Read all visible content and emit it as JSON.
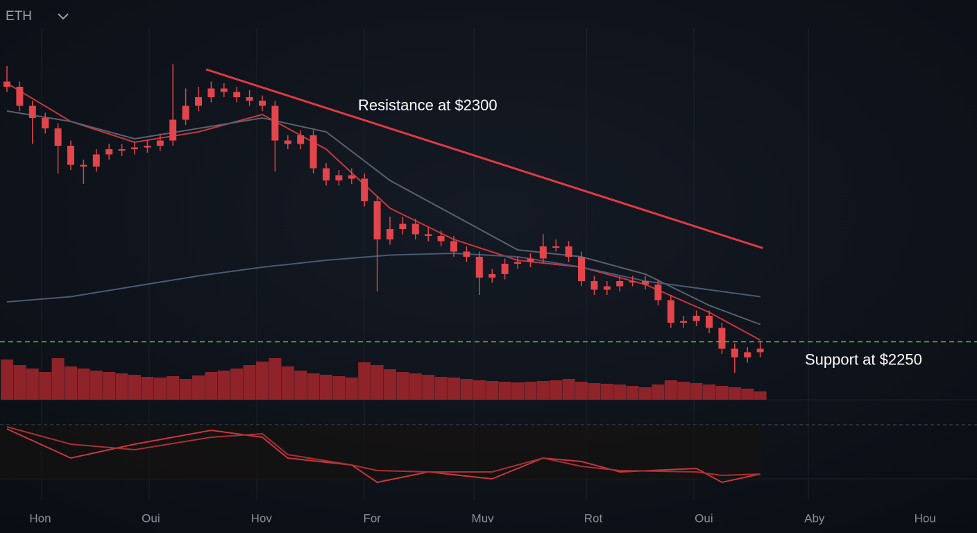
{
  "header": {
    "symbol": "ETH"
  },
  "chart_data": {
    "type": "candlestick",
    "ylim": [
      2220,
      2420
    ],
    "color": "#e2454b",
    "open": [
      2400,
      2397,
      2386,
      2379,
      2373,
      2363,
      2352,
      2351,
      2358,
      2361,
      2361,
      2362,
      2363,
      2366,
      2378,
      2386,
      2391,
      2396,
      2394,
      2391,
      2389,
      2386,
      2366,
      2364,
      2369,
      2350,
      2343,
      2346,
      2344,
      2331,
      2309,
      2315,
      2318,
      2312,
      2311,
      2308,
      2302,
      2299,
      2287,
      2289,
      2295,
      2296,
      2298,
      2305,
      2305,
      2299,
      2285,
      2280,
      2282,
      2285,
      2285,
      2283,
      2274,
      2261,
      2262,
      2265,
      2258,
      2246,
      2241,
      2244
    ],
    "high": [
      2409,
      2400,
      2389,
      2382,
      2376,
      2366,
      2355,
      2361,
      2364,
      2364,
      2365,
      2366,
      2370,
      2410,
      2396,
      2397,
      2400,
      2399,
      2397,
      2395,
      2392,
      2389,
      2369,
      2372,
      2372,
      2353,
      2349,
      2350,
      2347,
      2334,
      2322,
      2322,
      2321,
      2316,
      2314,
      2311,
      2305,
      2302,
      2292,
      2298,
      2299,
      2301,
      2312,
      2309,
      2308,
      2302,
      2288,
      2285,
      2288,
      2288,
      2288,
      2286,
      2277,
      2265,
      2268,
      2268,
      2261,
      2249,
      2247,
      2250
    ],
    "low": [
      2394,
      2383,
      2364,
      2370,
      2347,
      2349,
      2341,
      2348,
      2355,
      2357,
      2358,
      2359,
      2360,
      2363,
      2375,
      2383,
      2388,
      2391,
      2388,
      2386,
      2383,
      2348,
      2361,
      2361,
      2347,
      2340,
      2340,
      2341,
      2328,
      2279,
      2306,
      2312,
      2309,
      2308,
      2305,
      2299,
      2296,
      2277,
      2284,
      2286,
      2292,
      2293,
      2295,
      2302,
      2296,
      2282,
      2277,
      2277,
      2279,
      2282,
      2280,
      2271,
      2258,
      2258,
      2259,
      2255,
      2243,
      2232,
      2238,
      2241
    ],
    "close": [
      2397,
      2386,
      2379,
      2373,
      2363,
      2352,
      2351,
      2358,
      2361,
      2361,
      2362,
      2363,
      2366,
      2378,
      2386,
      2391,
      2396,
      2394,
      2391,
      2389,
      2386,
      2366,
      2364,
      2369,
      2350,
      2343,
      2346,
      2344,
      2331,
      2309,
      2315,
      2318,
      2312,
      2311,
      2308,
      2302,
      2299,
      2287,
      2289,
      2295,
      2296,
      2298,
      2305,
      2305,
      2299,
      2285,
      2280,
      2282,
      2285,
      2285,
      2283,
      2274,
      2261,
      2262,
      2265,
      2258,
      2246,
      2241,
      2244,
      2246
    ],
    "volume": [
      58,
      50,
      45,
      40,
      60,
      48,
      45,
      42,
      40,
      38,
      36,
      33,
      32,
      34,
      30,
      35,
      40,
      42,
      45,
      50,
      55,
      60,
      48,
      42,
      38,
      36,
      34,
      32,
      54,
      50,
      44,
      40,
      38,
      36,
      33,
      32,
      30,
      28,
      27,
      26,
      25,
      26,
      27,
      28,
      30,
      26,
      24,
      23,
      22,
      20,
      18,
      22,
      28,
      26,
      24,
      22,
      20,
      18,
      16,
      12
    ],
    "volume_color": "#8e2329",
    "moving_averages": [
      {
        "color": "#c8363d",
        "x": [
          0,
          5,
          10,
          15,
          20,
          25,
          30,
          35,
          40,
          45,
          50,
          55,
          59
        ],
        "values": [
          2399,
          2377,
          2365,
          2371,
          2381,
          2361,
          2327,
          2309,
          2297,
          2293,
          2283,
          2267,
          2251
        ]
      },
      {
        "color": "#59626f",
        "x": [
          0,
          5,
          10,
          15,
          20,
          25,
          30,
          35,
          40,
          45,
          50,
          55,
          59
        ],
        "values": [
          2383,
          2377,
          2367,
          2373,
          2379,
          2371,
          2343,
          2323,
          2303,
          2299,
          2289,
          2271,
          2260
        ]
      },
      {
        "color": "#4a5a74",
        "x": [
          0,
          5,
          10,
          15,
          20,
          25,
          30,
          35,
          40,
          45,
          50,
          55,
          59
        ],
        "values": [
          2273,
          2276,
          2282,
          2288,
          2293,
          2297,
          2300,
          2301,
          2299,
          2293,
          2285,
          2280,
          2276
        ]
      }
    ],
    "resistance": {
      "label": "Resistance at $2300",
      "x": [
        15.6,
        59.2
      ],
      "values": [
        2407,
        2304
      ],
      "color": "#e03a44"
    },
    "support": {
      "label": "Support at $2250",
      "value": 2250,
      "color": "#5fbf3a"
    },
    "oscillator": [
      {
        "color": "#c8363d",
        "x": [
          0,
          5,
          10,
          16,
          20,
          22,
          27,
          29,
          33,
          38,
          42,
          45,
          48,
          54,
          56,
          59
        ],
        "values": [
          82,
          40,
          60,
          80,
          70,
          40,
          30,
          5,
          20,
          10,
          40,
          35,
          20,
          25,
          5,
          17
        ]
      },
      {
        "color": "#a83036",
        "x": [
          0,
          5,
          10,
          16,
          20,
          22,
          27,
          29,
          33,
          38,
          42,
          45,
          48,
          54,
          56,
          59
        ],
        "values": [
          85,
          60,
          52,
          70,
          75,
          45,
          30,
          22,
          20,
          20,
          40,
          28,
          22,
          20,
          15,
          17
        ]
      }
    ],
    "x_labels": [
      "Hon",
      "Oui",
      "Hov",
      "For",
      "Muv",
      "Rot",
      "Oui",
      "Aby",
      "Hou"
    ]
  }
}
